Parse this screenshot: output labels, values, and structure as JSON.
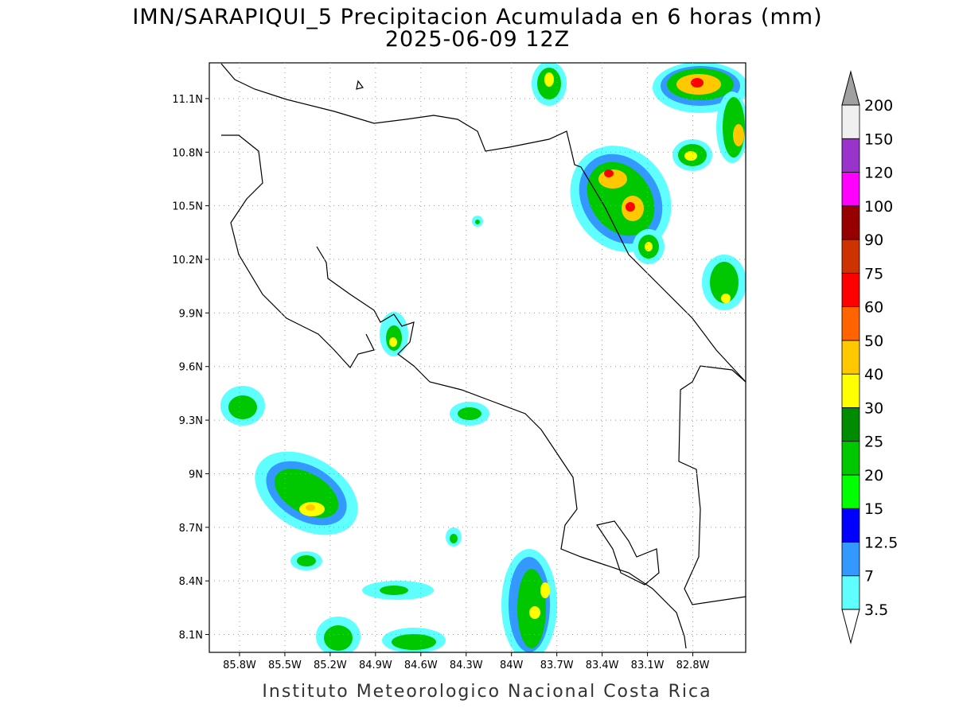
{
  "title": "IMN/SARAPIQUI_5 Precipitacion Acumulada en 6 horas (mm)",
  "subtitle": "2025-06-09 12Z",
  "map": {
    "xlim": [
      -86.0,
      -82.45
    ],
    "ylim": [
      8.0,
      11.3
    ],
    "grid": true,
    "xticks": [
      {
        "value": -85.8,
        "label": "85.8W"
      },
      {
        "value": -85.5,
        "label": "85.5W"
      },
      {
        "value": -85.2,
        "label": "85.2W"
      },
      {
        "value": -84.9,
        "label": "84.9W"
      },
      {
        "value": -84.6,
        "label": "84.6W"
      },
      {
        "value": -84.3,
        "label": "84.3W"
      },
      {
        "value": -84.0,
        "label": "84W"
      },
      {
        "value": -83.7,
        "label": "83.7W"
      },
      {
        "value": -83.4,
        "label": "83.4W"
      },
      {
        "value": -83.1,
        "label": "83.1W"
      },
      {
        "value": -82.8,
        "label": "82.8W"
      }
    ],
    "yticks": [
      {
        "value": 8.1,
        "label": "8.1N"
      },
      {
        "value": 8.4,
        "label": "8.4N"
      },
      {
        "value": 8.7,
        "label": "8.7N"
      },
      {
        "value": 9.0,
        "label": "9N"
      },
      {
        "value": 9.3,
        "label": "9.3N"
      },
      {
        "value": 9.6,
        "label": "9.6N"
      },
      {
        "value": 9.9,
        "label": "9.9N"
      },
      {
        "value": 10.2,
        "label": "10.2N"
      },
      {
        "value": 10.5,
        "label": "10.5N"
      },
      {
        "value": 10.8,
        "label": "10.8N"
      },
      {
        "value": 11.1,
        "label": "11.1N"
      }
    ]
  },
  "colorbar": {
    "levels": [
      3.5,
      7,
      12.5,
      15,
      20,
      25,
      30,
      40,
      50,
      60,
      75,
      90,
      100,
      120,
      150,
      200
    ],
    "colors": [
      "#60ffff",
      "#3399ff",
      "#0000ff",
      "#00ff00",
      "#00c800",
      "#008c00",
      "#ffff00",
      "#ffc800",
      "#ff6400",
      "#ff0000",
      "#cc3300",
      "#960000",
      "#ff00ff",
      "#9933cc",
      "#f0f0f0"
    ],
    "under_color": "#ffffff",
    "over_color": "#a0a0a0"
  },
  "footer": "Instituto Meteorologico Nacional Costa Rica"
}
